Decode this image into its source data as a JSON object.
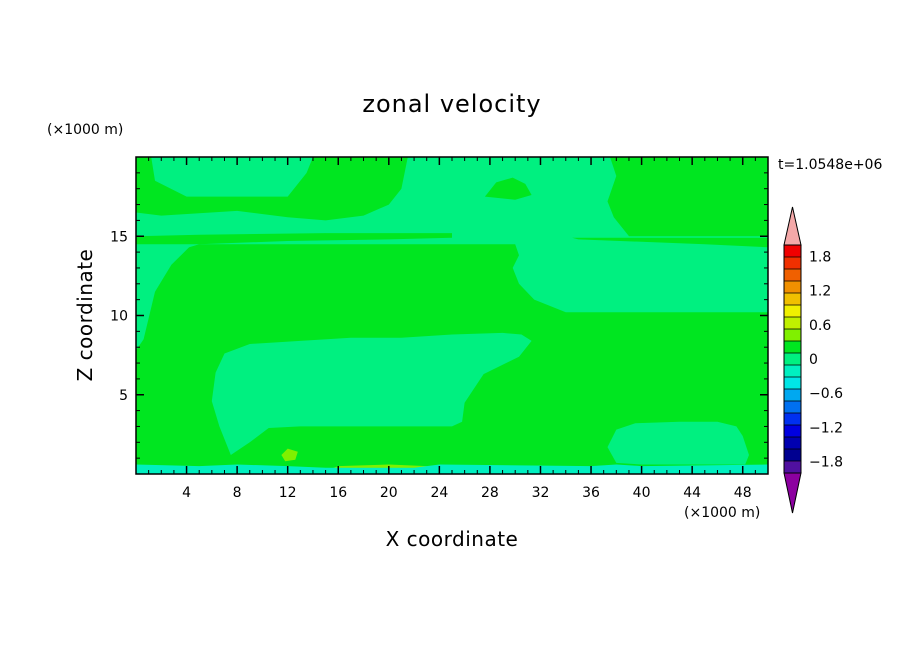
{
  "chart_data": {
    "type": "heatmap",
    "title": "zonal velocity",
    "xlabel": "X coordinate",
    "ylabel": "Z coordinate",
    "x_unit": "(×1000 m)",
    "y_unit": "(×1000 m)",
    "time_label": "t=1.0548e+06",
    "xlim": [
      0,
      50
    ],
    "ylim": [
      0,
      20
    ],
    "x_ticks": [
      4,
      8,
      12,
      16,
      20,
      24,
      28,
      32,
      36,
      40,
      44,
      48
    ],
    "y_ticks": [
      5,
      10,
      15
    ],
    "x_tick_labels": [
      "4",
      "8",
      "12",
      "16",
      "20",
      "24",
      "28",
      "32",
      "36",
      "40",
      "44",
      "48"
    ],
    "y_tick_labels": [
      "5",
      "10",
      "15"
    ],
    "background_color": "#00e620",
    "regions": [
      {
        "level": 0.0,
        "color": "#00e620",
        "points": [
          [
            0,
            0
          ],
          [
            50,
            0
          ],
          [
            50,
            20
          ],
          [
            0,
            20
          ]
        ]
      },
      {
        "level": -0.15,
        "color": "#00f080",
        "points": [
          [
            0,
            7.8
          ],
          [
            0.6,
            8.5
          ],
          [
            1.5,
            11.5
          ],
          [
            2.8,
            13.2
          ],
          [
            4.2,
            14.3
          ],
          [
            5,
            14.5
          ],
          [
            30,
            14.5
          ],
          [
            30.3,
            13.8
          ],
          [
            29.8,
            13
          ],
          [
            30.3,
            12
          ],
          [
            31.5,
            11
          ],
          [
            34,
            10.2
          ],
          [
            50,
            10.2
          ],
          [
            50,
            14.3
          ],
          [
            45,
            14.5
          ],
          [
            35,
            14.8
          ],
          [
            34.5,
            14.9
          ],
          [
            50,
            14.9
          ],
          [
            50,
            20
          ],
          [
            0,
            20
          ]
        ]
      },
      {
        "level": 0.0,
        "color": "#00e620",
        "points": [
          [
            0,
            16.5
          ],
          [
            2,
            16.3
          ],
          [
            8,
            16.6
          ],
          [
            12,
            16.2
          ],
          [
            15,
            16.0
          ],
          [
            18,
            16.3
          ],
          [
            20,
            17.0
          ],
          [
            21,
            18.0
          ],
          [
            21.5,
            20
          ],
          [
            14,
            20
          ],
          [
            13.5,
            19
          ],
          [
            12,
            17.5
          ],
          [
            8,
            17.5
          ],
          [
            4,
            17.5
          ],
          [
            1.5,
            18.5
          ],
          [
            1.2,
            20
          ],
          [
            0,
            20
          ]
        ]
      },
      {
        "level": 0.0,
        "color": "#00e620",
        "points": [
          [
            0,
            14.5
          ],
          [
            5,
            14.5
          ],
          [
            12,
            14.7
          ],
          [
            20,
            14.8
          ],
          [
            25,
            14.9
          ],
          [
            25,
            15.2
          ],
          [
            15,
            15.2
          ],
          [
            5,
            15.1
          ],
          [
            0,
            15
          ]
        ]
      },
      {
        "level": 0.0,
        "color": "#00e620",
        "points": [
          [
            27.6,
            17.5
          ],
          [
            28.5,
            18.4
          ],
          [
            29.8,
            18.7
          ],
          [
            30.8,
            18.3
          ],
          [
            31.3,
            17.6
          ],
          [
            30,
            17.3
          ]
        ]
      },
      {
        "level": 0.0,
        "color": "#00e620",
        "points": [
          [
            37.5,
            20
          ],
          [
            38,
            18.8
          ],
          [
            37.3,
            17.2
          ],
          [
            37.8,
            16.2
          ],
          [
            38.5,
            15.5
          ],
          [
            39,
            15.0
          ],
          [
            50,
            15.0
          ],
          [
            50,
            20
          ]
        ]
      },
      {
        "level": -0.15,
        "color": "#00f080",
        "points": [
          [
            6.3,
            6.4
          ],
          [
            7,
            7.6
          ],
          [
            9,
            8.2
          ],
          [
            13,
            8.4
          ],
          [
            17,
            8.6
          ],
          [
            21,
            8.6
          ],
          [
            25,
            8.8
          ],
          [
            29,
            8.9
          ],
          [
            30.5,
            8.8
          ],
          [
            31.3,
            8.4
          ],
          [
            30.3,
            7.4
          ],
          [
            27.5,
            6.3
          ],
          [
            26,
            4.5
          ],
          [
            25.8,
            3.3
          ],
          [
            25,
            3.0
          ],
          [
            13,
            3.0
          ],
          [
            10.5,
            2.9
          ],
          [
            9,
            2.0
          ],
          [
            7.5,
            1.2
          ],
          [
            6.6,
            3
          ],
          [
            6.0,
            4.6
          ]
        ]
      },
      {
        "level": -0.15,
        "color": "#00f080",
        "points": [
          [
            37.3,
            1.7
          ],
          [
            38,
            2.8
          ],
          [
            39.5,
            3.2
          ],
          [
            43,
            3.3
          ],
          [
            46,
            3.3
          ],
          [
            47.5,
            3.0
          ],
          [
            48,
            2.4
          ],
          [
            48.5,
            1.2
          ],
          [
            48.2,
            0.6
          ],
          [
            40,
            0.6
          ],
          [
            38,
            0.7
          ]
        ]
      },
      {
        "level": 0.3,
        "color": "#80f000",
        "points": [
          [
            11.5,
            1.2
          ],
          [
            12,
            1.6
          ],
          [
            12.8,
            1.4
          ],
          [
            12.6,
            0.9
          ],
          [
            11.8,
            0.8
          ]
        ]
      },
      {
        "level": 0.3,
        "color": "#80f000",
        "points": [
          [
            15,
            0.2
          ],
          [
            16,
            0.5
          ],
          [
            20,
            0.6
          ],
          [
            23,
            0.5
          ],
          [
            24,
            0.2
          ]
        ]
      },
      {
        "level": 0.3,
        "color": "#80f000",
        "points": [
          [
            38.5,
            0.2
          ],
          [
            40,
            0.4
          ],
          [
            44,
            0.5
          ],
          [
            47.5,
            0.4
          ],
          [
            48,
            0.2
          ]
        ]
      },
      {
        "level": -0.45,
        "color": "#00f0c0",
        "points": [
          [
            0,
            0
          ],
          [
            50,
            0
          ],
          [
            50,
            0.6
          ],
          [
            40,
            0.5
          ],
          [
            38,
            0.6
          ],
          [
            36,
            0.5
          ],
          [
            24,
            0.6
          ],
          [
            22,
            0.4
          ],
          [
            15,
            0.4
          ],
          [
            12,
            0.5
          ],
          [
            8,
            0.6
          ],
          [
            5,
            0.5
          ],
          [
            0,
            0.6
          ]
        ]
      }
    ],
    "colorbar": {
      "labels": [
        "1.8",
        "1.2",
        "0.6",
        "0",
        "−0.6",
        "−1.2",
        "−1.8"
      ],
      "label_values": [
        1.8,
        1.2,
        0.6,
        0,
        -0.6,
        -1.2,
        -1.8
      ],
      "range": [
        -2.0,
        2.0
      ],
      "step": 0.3,
      "over_color": "#f4a8a8",
      "under_color": "#8c00a0",
      "colors_top_to_bottom": [
        "#f00000",
        "#f03000",
        "#f06000",
        "#f09000",
        "#f0c000",
        "#f0f000",
        "#c0f000",
        "#80f000",
        "#00e620",
        "#00f080",
        "#00f0c0",
        "#00e6e6",
        "#00a8f0",
        "#0070f0",
        "#0030f0",
        "#0000e0",
        "#0000b0",
        "#000090",
        "#5010a0"
      ]
    }
  }
}
